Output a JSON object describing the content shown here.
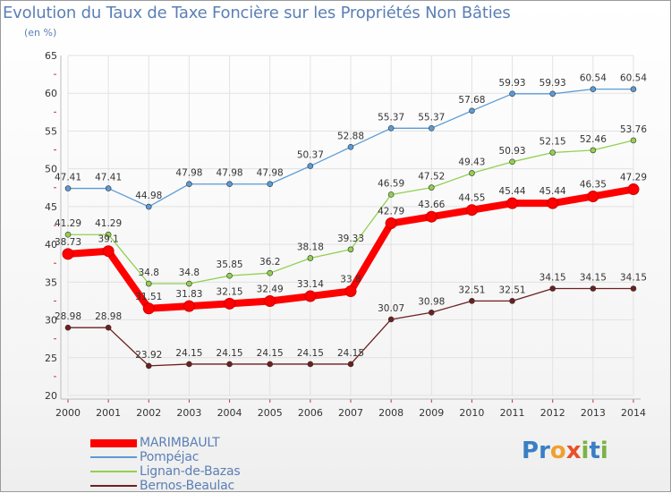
{
  "chart_data": {
    "type": "line",
    "title": "Evolution du Taux de Taxe Foncière sur les Propriétés Non Bâties",
    "subtitle": "(en %)",
    "x": [
      "2000",
      "2001",
      "2002",
      "2003",
      "2004",
      "2005",
      "2006",
      "2007",
      "2008",
      "2009",
      "2010",
      "2011",
      "2012",
      "2013",
      "2014"
    ],
    "ylim": [
      20,
      65
    ],
    "yticks": [
      "20",
      "25",
      "30",
      "35",
      "40",
      "45",
      "50",
      "55",
      "60",
      "65"
    ],
    "grid": true,
    "legend_position": "bottom-left",
    "series": [
      {
        "name": "Pompéjac",
        "color": "#5b9bd5",
        "values": [
          47.41,
          47.41,
          44.98,
          47.98,
          47.98,
          47.98,
          50.37,
          52.88,
          55.37,
          55.37,
          57.68,
          59.93,
          59.93,
          60.54,
          60.54
        ],
        "labels": [
          "47.41",
          "47.41",
          "44.98",
          "47.98",
          "47.98",
          "47.98",
          "50.37",
          "52.88",
          "55.37",
          "55.37",
          "57.68",
          "59.93",
          "59.93",
          "60.54",
          "60.54"
        ]
      },
      {
        "name": "Lignan-de-Bazas",
        "color": "#92d050",
        "values": [
          41.29,
          41.29,
          34.8,
          34.8,
          35.85,
          36.2,
          38.18,
          39.33,
          46.59,
          47.52,
          49.43,
          50.93,
          52.15,
          52.46,
          53.76
        ],
        "labels": [
          "41.29",
          "41.29",
          "34.8",
          "34.8",
          "35.85",
          "36.2",
          "38.18",
          "39.33",
          "46.59",
          "47.52",
          "49.43",
          "50.93",
          "52.15",
          "52.46",
          "53.76"
        ]
      },
      {
        "name": "Bernos-Beaulac",
        "color": "#6e1f1f",
        "values": [
          28.98,
          28.98,
          23.92,
          24.15,
          24.15,
          24.15,
          24.15,
          24.15,
          30.07,
          30.98,
          32.51,
          32.51,
          34.15,
          34.15,
          34.15
        ],
        "labels": [
          "28.98",
          "28.98",
          "23.92",
          "24.15",
          "24.15",
          "24.15",
          "24.15",
          "24.15",
          "30.07",
          "30.98",
          "32.51",
          "32.51",
          "34.15",
          "34.15",
          "34.15"
        ]
      },
      {
        "name": "MARIMBAULT",
        "color": "#ff0000",
        "values": [
          38.73,
          39.1,
          31.51,
          31.83,
          32.15,
          32.49,
          33.14,
          33.8,
          42.79,
          43.66,
          44.55,
          45.44,
          45.44,
          46.35,
          47.29
        ],
        "labels": [
          "38.73",
          "39.1",
          "31.51",
          "31.83",
          "32.15",
          "32.49",
          "33.14",
          "33.8",
          "42.79",
          "43.66",
          "44.55",
          "45.44",
          "45.44",
          "46.35",
          "47.29"
        ]
      }
    ]
  },
  "legend": {
    "items": [
      {
        "label": "MARIMBAULT",
        "color": "#ff0000"
      },
      {
        "label": "Pompéjac",
        "color": "#5b9bd5"
      },
      {
        "label": "Lignan-de-Bazas",
        "color": "#92d050"
      },
      {
        "label": "Bernos-Beaulac",
        "color": "#6e1f1f"
      }
    ]
  },
  "logo": {
    "text": "Proxiti",
    "letters": [
      "P",
      "r",
      "o",
      "x",
      "i",
      "t",
      "i"
    ],
    "colors": [
      "#3a7fc4",
      "#3a7fc4",
      "#f0a030",
      "#e8502a",
      "#7cb342",
      "#3a7fc4",
      "#7cb342"
    ]
  }
}
